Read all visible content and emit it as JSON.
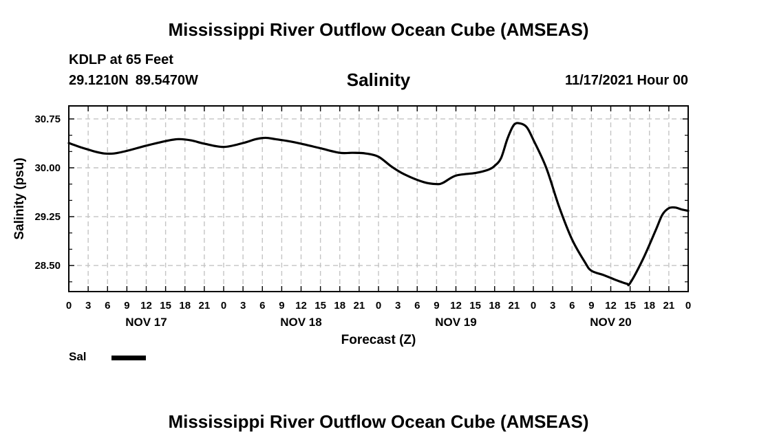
{
  "header": {
    "title": "Mississippi River Outflow Ocean Cube (AMSEAS)",
    "station": "KDLP at 65 Feet",
    "lat": "29.1210N",
    "lon": "89.5470W",
    "parameter": "Salinity",
    "run_time": "11/17/2021 Hour 00"
  },
  "footer": {
    "title": "Mississippi River Outflow Ocean Cube (AMSEAS)"
  },
  "legend": {
    "label": "Sal",
    "color": "#000000"
  },
  "chart_data": {
    "type": "line",
    "title": "Salinity",
    "xlabel": "Forecast (Z)",
    "ylabel": "Salinity (psu)",
    "xlim": [
      0,
      96
    ],
    "ylim": [
      28.1,
      30.95
    ],
    "yticks": [
      "30.75",
      "30.00",
      "29.25",
      "28.50"
    ],
    "ytick_values": [
      30.75,
      30.0,
      29.25,
      28.5
    ],
    "y_minor_step": 0.25,
    "xtick_labels": [
      "0",
      "3",
      "6",
      "9",
      "12",
      "15",
      "18",
      "21",
      "0",
      "3",
      "6",
      "9",
      "12",
      "15",
      "18",
      "21",
      "0",
      "3",
      "6",
      "9",
      "12",
      "15",
      "18",
      "21",
      "0",
      "3",
      "6",
      "9",
      "12",
      "15",
      "18",
      "21",
      "0"
    ],
    "xtick_hours": [
      0,
      3,
      6,
      9,
      12,
      15,
      18,
      21,
      24,
      27,
      30,
      33,
      36,
      39,
      42,
      45,
      48,
      51,
      54,
      57,
      60,
      63,
      66,
      69,
      72,
      75,
      78,
      81,
      84,
      87,
      90,
      93,
      96
    ],
    "date_labels": [
      {
        "label": "NOV 17",
        "hour": 12
      },
      {
        "label": "NOV 18",
        "hour": 36
      },
      {
        "label": "NOV 19",
        "hour": 60
      },
      {
        "label": "NOV 20",
        "hour": 84
      }
    ],
    "grid": true,
    "series": [
      {
        "name": "Sal",
        "color": "#000000",
        "x": [
          0,
          2,
          3,
          4,
          5.5,
          7,
          9,
          12,
          15,
          17,
          19,
          21,
          24,
          27,
          29,
          30.5,
          32,
          34,
          36,
          39,
          42,
          44,
          46,
          48,
          50,
          52,
          55,
          57,
          58,
          60,
          63,
          65,
          66,
          67,
          68,
          69,
          70,
          71,
          72,
          74,
          76,
          78,
          80,
          81,
          83,
          85,
          86.5,
          87,
          89,
          91,
          92,
          93,
          94,
          95,
          96
        ],
        "y": [
          30.38,
          30.31,
          30.28,
          30.25,
          30.22,
          30.22,
          30.26,
          30.34,
          30.41,
          30.44,
          30.42,
          30.37,
          30.32,
          30.38,
          30.44,
          30.46,
          30.44,
          30.41,
          30.37,
          30.3,
          30.23,
          30.23,
          30.22,
          30.17,
          30.02,
          29.9,
          29.78,
          29.75,
          29.77,
          29.88,
          29.92,
          29.97,
          30.03,
          30.15,
          30.45,
          30.66,
          30.68,
          30.62,
          30.43,
          30.0,
          29.4,
          28.9,
          28.55,
          28.42,
          28.35,
          28.27,
          28.22,
          28.23,
          28.6,
          29.05,
          29.28,
          29.38,
          29.39,
          29.36,
          29.34
        ]
      }
    ]
  }
}
